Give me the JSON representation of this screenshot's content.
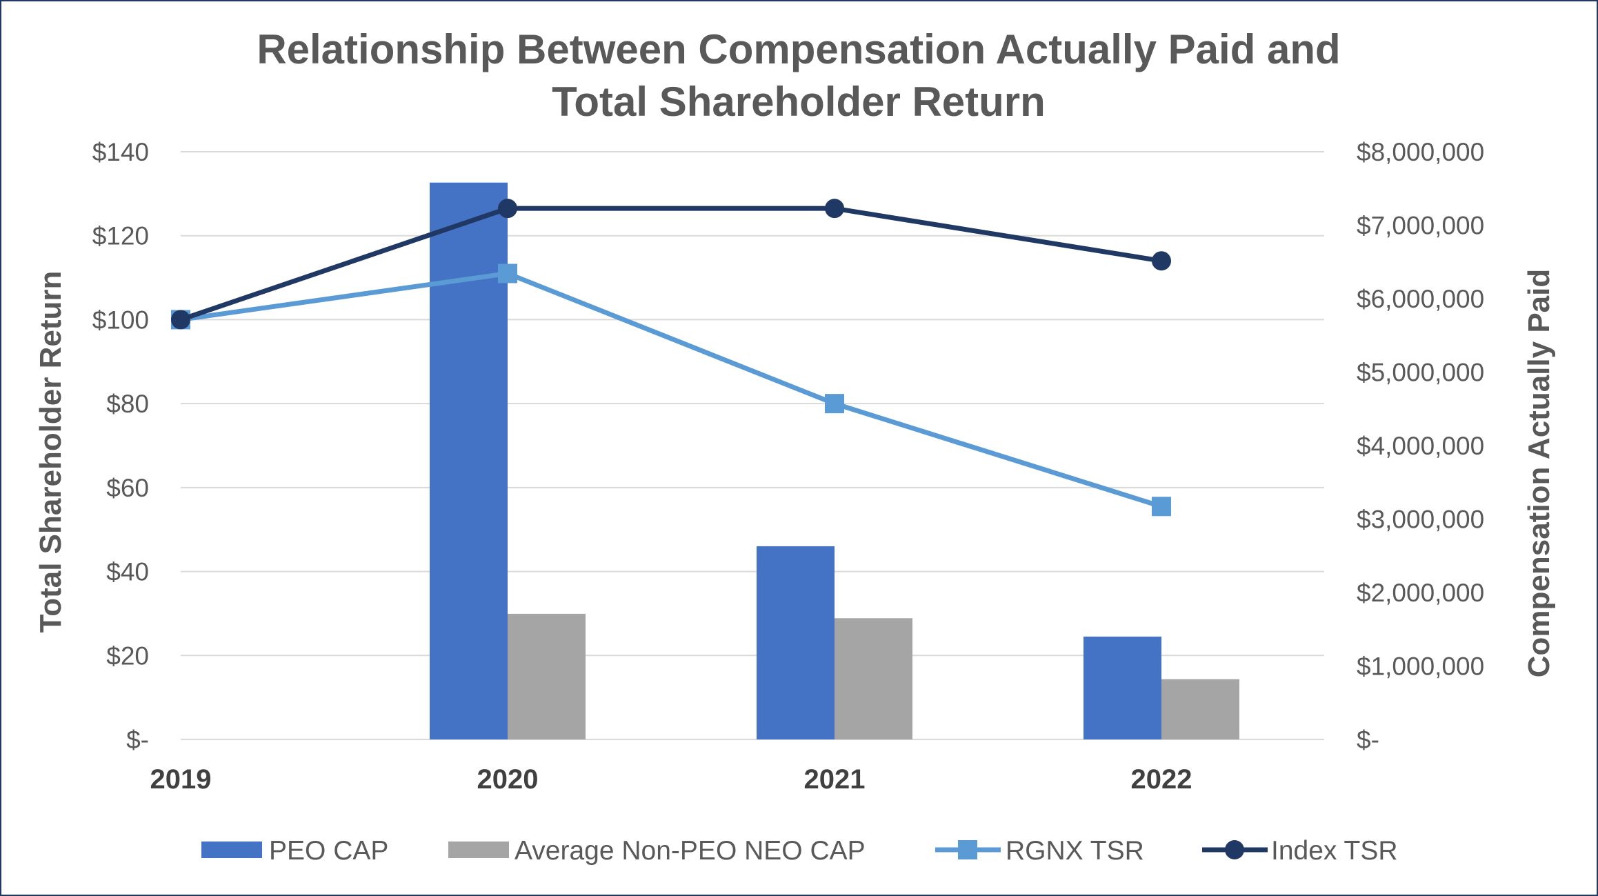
{
  "chart_data": {
    "type": "bar",
    "title_lines": [
      "Relationship Between Compensation Actually Paid and",
      "Total Shareholder Return"
    ],
    "categories": [
      "2019",
      "2020",
      "2021",
      "2022"
    ],
    "left_axis": {
      "label": "Total Shareholder Return",
      "min": 0,
      "max": 140,
      "step": 20,
      "tick_labels": [
        "$-",
        "$20",
        "$40",
        "$60",
        "$80",
        "$100",
        "$120",
        "$140"
      ]
    },
    "right_axis": {
      "label": "Compensation Actually Paid",
      "min": 0,
      "max": 8000000,
      "step": 1000000,
      "tick_labels": [
        "$-",
        "$1,000,000",
        "$2,000,000",
        "$3,000,000",
        "$4,000,000",
        "$5,000,000",
        "$6,000,000",
        "$7,000,000",
        "$8,000,000"
      ]
    },
    "series": [
      {
        "name": "PEO CAP",
        "kind": "bar",
        "axis": "right",
        "color": "#4472c4",
        "values": [
          null,
          7580000,
          2630000,
          1400000
        ]
      },
      {
        "name": "Average Non-PEO NEO CAP",
        "kind": "bar",
        "axis": "right",
        "color": "#a5a5a5",
        "values": [
          null,
          1710000,
          1650000,
          820000
        ]
      },
      {
        "name": "RGNX TSR",
        "kind": "line",
        "marker": "square",
        "axis": "left",
        "color": "#5b9bd5",
        "values": [
          100,
          111,
          80,
          55.5
        ]
      },
      {
        "name": "Index TSR",
        "kind": "line",
        "marker": "circle",
        "axis": "left",
        "color": "#203864",
        "values": [
          100,
          126.5,
          126.5,
          114
        ]
      }
    ],
    "grid": true,
    "legend_position": "bottom"
  }
}
